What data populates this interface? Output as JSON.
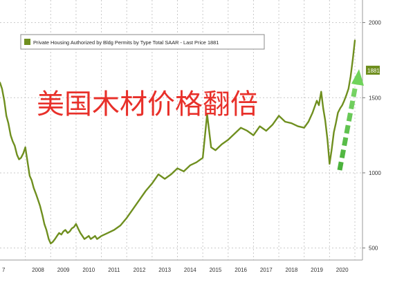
{
  "chart_data": {
    "type": "line",
    "legend": "Private Housing Authorized by Bldg Permits by Type Total SAAR - Last Price 1881",
    "last_price_label": "1881",
    "overlay_title": "美国木材价格翻倍",
    "x_tick_labels": [
      "7",
      "2008",
      "2009",
      "2010",
      "2011",
      "2012",
      "2013",
      "2014",
      "2015",
      "2016",
      "2017",
      "2018",
      "2019",
      "2020"
    ],
    "y_tick_labels": [
      "500",
      "1000",
      "1500",
      "2000"
    ],
    "ylim": [
      420,
      2150
    ],
    "xlim": [
      2007.0,
      2021.3
    ],
    "grid": true,
    "legend_placement": "top-left",
    "colors": {
      "line": "#6f8f1f",
      "arrow": "#55c040",
      "overlay_text": "#e8302a",
      "last_price_badge": "#6f8f1f",
      "grid": "#c8c8c8"
    },
    "series": [
      {
        "x": [
          2007.0,
          2007.08,
          2007.17,
          2007.25,
          2007.33,
          2007.42,
          2007.5,
          2007.58,
          2007.67,
          2007.75,
          2007.83,
          2007.92,
          2008.0,
          2008.08,
          2008.17,
          2008.25,
          2008.33,
          2008.42,
          2008.5,
          2008.58,
          2008.67,
          2008.75,
          2008.83,
          2008.92,
          2009.0,
          2009.08,
          2009.17,
          2009.25,
          2009.33,
          2009.42,
          2009.5,
          2009.58,
          2009.67,
          2009.75,
          2009.83,
          2009.92,
          2010.0,
          2010.08,
          2010.17,
          2010.25,
          2010.33,
          2010.42,
          2010.5,
          2010.58,
          2010.67,
          2010.75,
          2010.83,
          2010.92,
          2011.0,
          2011.25,
          2011.5,
          2011.75,
          2012.0,
          2012.25,
          2012.5,
          2012.75,
          2013.0,
          2013.25,
          2013.5,
          2013.75,
          2014.0,
          2014.25,
          2014.5,
          2014.75,
          2015.0,
          2015.17,
          2015.33,
          2015.5,
          2015.75,
          2016.0,
          2016.25,
          2016.5,
          2016.75,
          2017.0,
          2017.25,
          2017.5,
          2017.75,
          2018.0,
          2018.25,
          2018.5,
          2018.75,
          2019.0,
          2019.17,
          2019.33,
          2019.5,
          2019.58,
          2019.67,
          2019.75,
          2019.83,
          2019.92,
          2020.0,
          2020.08,
          2020.17,
          2020.25,
          2020.33,
          2020.42,
          2020.5,
          2020.58,
          2020.67,
          2020.75,
          2020.83,
          2020.92,
          2021.0
        ],
        "y": [
          1600,
          1560,
          1480,
          1380,
          1330,
          1250,
          1210,
          1180,
          1120,
          1090,
          1100,
          1130,
          1170,
          1080,
          980,
          950,
          900,
          860,
          820,
          780,
          720,
          660,
          620,
          560,
          530,
          540,
          560,
          580,
          600,
          590,
          610,
          620,
          600,
          610,
          630,
          640,
          660,
          630,
          600,
          580,
          560,
          570,
          580,
          560,
          570,
          580,
          560,
          570,
          580,
          600,
          620,
          650,
          700,
          760,
          820,
          880,
          930,
          990,
          960,
          990,
          1030,
          1010,
          1050,
          1070,
          1100,
          1390,
          1170,
          1150,
          1190,
          1220,
          1260,
          1300,
          1280,
          1250,
          1310,
          1280,
          1320,
          1380,
          1340,
          1330,
          1310,
          1300,
          1340,
          1400,
          1480,
          1450,
          1540,
          1430,
          1350,
          1220,
          1060,
          1150,
          1270,
          1330,
          1400,
          1430,
          1450,
          1480,
          1520,
          1560,
          1640,
          1760,
          1881
        ]
      }
    ]
  }
}
